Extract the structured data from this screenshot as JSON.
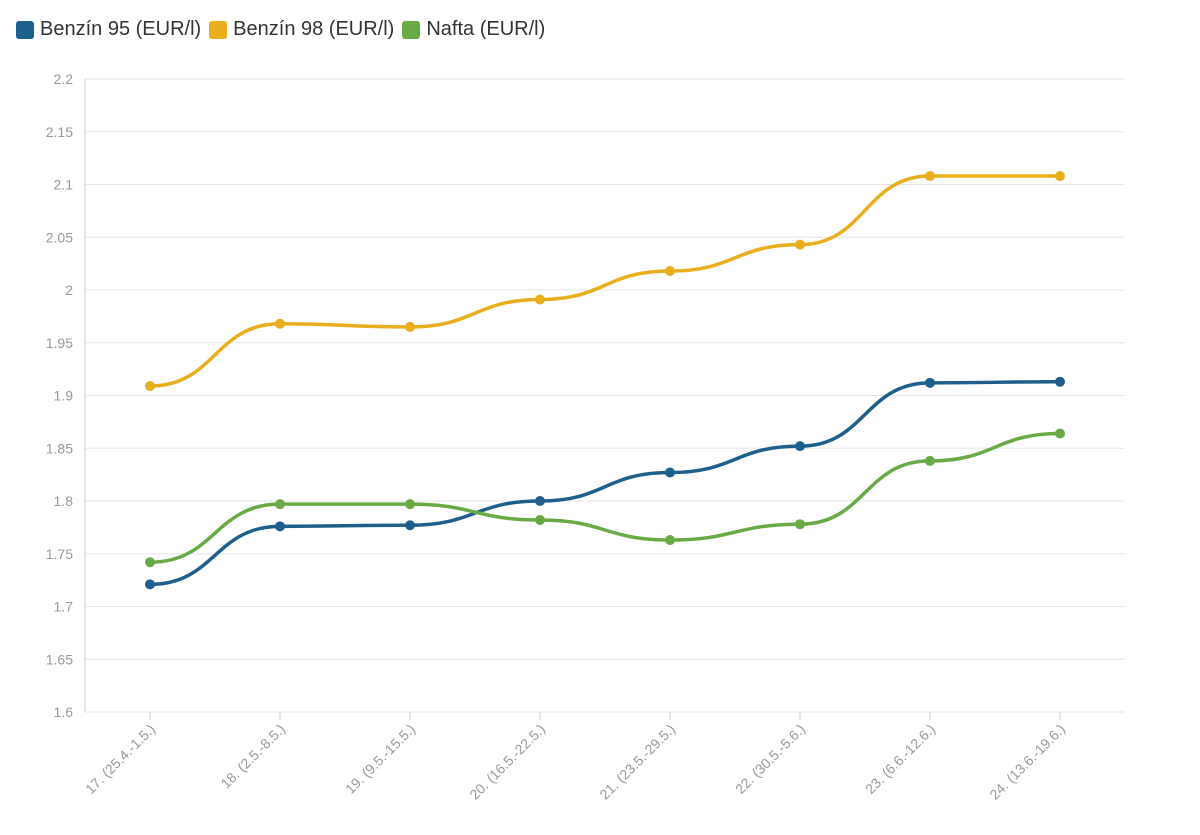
{
  "colors": {
    "benzin95": "#1f5f8b",
    "benzin98": "#e8ae1c",
    "nafta": "#6aaa46",
    "grid": "#e6e6e6",
    "tick_text": "#999999"
  },
  "chart_data": {
    "type": "line",
    "categories": [
      "17. (25.4.-1.5.)",
      "18. (2.5.-8.5.)",
      "19. (9.5.-15.5.)",
      "20. (16.5.-22.5.)",
      "21. (23.5.-29.5.)",
      "22. (30.5.-5.6.)",
      "23. (6.6.-12.6.)",
      "24. (13.6.-19.6.)"
    ],
    "series": [
      {
        "name": "Benzín 95 (EUR/l)",
        "color_key": "benzin95",
        "values": [
          1.721,
          1.776,
          1.777,
          1.8,
          1.827,
          1.852,
          1.912,
          1.913
        ]
      },
      {
        "name": "Benzín 98 (EUR/l)",
        "color_key": "benzin98",
        "values": [
          1.909,
          1.968,
          1.965,
          1.991,
          2.018,
          2.043,
          2.108,
          2.108
        ]
      },
      {
        "name": "Nafta (EUR/l)",
        "color_key": "nafta",
        "values": [
          1.742,
          1.797,
          1.797,
          1.782,
          1.763,
          1.778,
          1.838,
          1.864
        ]
      }
    ],
    "ylim": [
      1.6,
      2.2
    ],
    "yticks": [
      "1.6",
      "1.65",
      "1.7",
      "1.75",
      "1.8",
      "1.85",
      "1.9",
      "1.95",
      "2",
      "2.05",
      "2.1",
      "2.15",
      "2.2"
    ],
    "title": "",
    "xlabel": "",
    "ylabel": "",
    "grid": true,
    "legend_position": "top-left",
    "curve": "smooth"
  }
}
